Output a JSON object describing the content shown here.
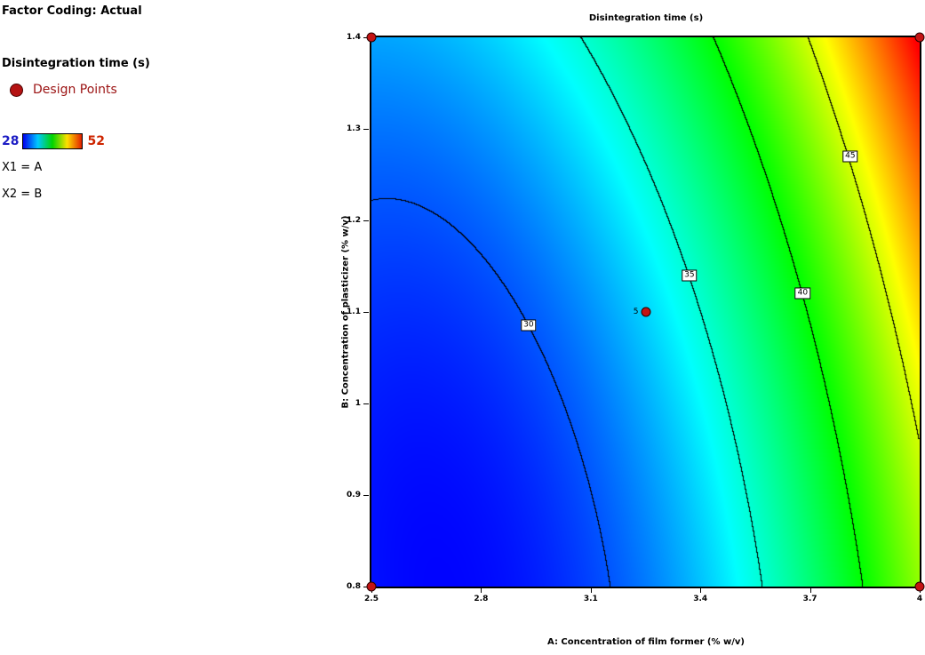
{
  "info_panel": {
    "factor_coding": "Factor Coding: Actual",
    "response_title": "Disintegration time (s)",
    "design_points_label": "Design Points",
    "scale_min": "28",
    "scale_max": "52",
    "x1_label": "X1 = A",
    "x2_label": "X2 = B"
  },
  "chart_data": {
    "type": "contour",
    "title": "Disintegration time (s)",
    "xlabel": "A: Concentration of film former (% w/v)",
    "ylabel": "B: Concentration of plasticizer (% w/v)",
    "xlim": [
      2.5,
      4
    ],
    "ylim": [
      0.8,
      1.4
    ],
    "xticks": [
      {
        "v": 2.5,
        "label": "2.5"
      },
      {
        "v": 2.8,
        "label": "2.8"
      },
      {
        "v": 3.1,
        "label": "3.1"
      },
      {
        "v": 3.4,
        "label": "3.4"
      },
      {
        "v": 3.7,
        "label": "3.7"
      },
      {
        "v": 4,
        "label": "4"
      }
    ],
    "yticks": [
      {
        "v": 0.8,
        "label": "0.8"
      },
      {
        "v": 0.9,
        "label": "0.9"
      },
      {
        "v": 1,
        "label": "1"
      },
      {
        "v": 1.1,
        "label": "1.1"
      },
      {
        "v": 1.2,
        "label": "1.2"
      },
      {
        "v": 1.3,
        "label": "1.3"
      },
      {
        "v": 1.4,
        "label": "1.4"
      }
    ],
    "z_range": [
      28,
      52
    ],
    "contour_levels": [
      30,
      35,
      40,
      45
    ],
    "contour_labels": [
      {
        "label": "30",
        "x": 2.93,
        "y": 1.085
      },
      {
        "label": "35",
        "x": 3.37,
        "y": 1.14
      },
      {
        "label": "40",
        "x": 3.68,
        "y": 1.12
      },
      {
        "label": "45",
        "x": 3.81,
        "y": 1.27
      }
    ],
    "design_points": [
      {
        "x": 2.5,
        "y": 0.8
      },
      {
        "x": 4,
        "y": 0.8
      },
      {
        "x": 2.5,
        "y": 1.4
      },
      {
        "x": 4,
        "y": 1.4
      },
      {
        "x": 3.25,
        "y": 1.1,
        "count_label": "5"
      }
    ],
    "corner_values_estimated": {
      "bottom_left": 28.4,
      "bottom_right": 43.4,
      "top_left": 31.9,
      "top_right": 52.4,
      "center": 33
    },
    "surface_model": {
      "a_center": 3.25,
      "a_scale": 0.75,
      "b_center": 1.1,
      "b_scale": 0.3,
      "intercept": 33,
      "ca": 8.875,
      "cb": 3.125,
      "cab": 1.375,
      "caa": 5,
      "cbb": 1
    },
    "colors": {
      "colormap": [
        "#0000ff",
        "#00ffff",
        "#00ff00",
        "#ffff00",
        "#ff0000"
      ],
      "design_point": "#c41414",
      "contour_line": "#000000"
    }
  }
}
